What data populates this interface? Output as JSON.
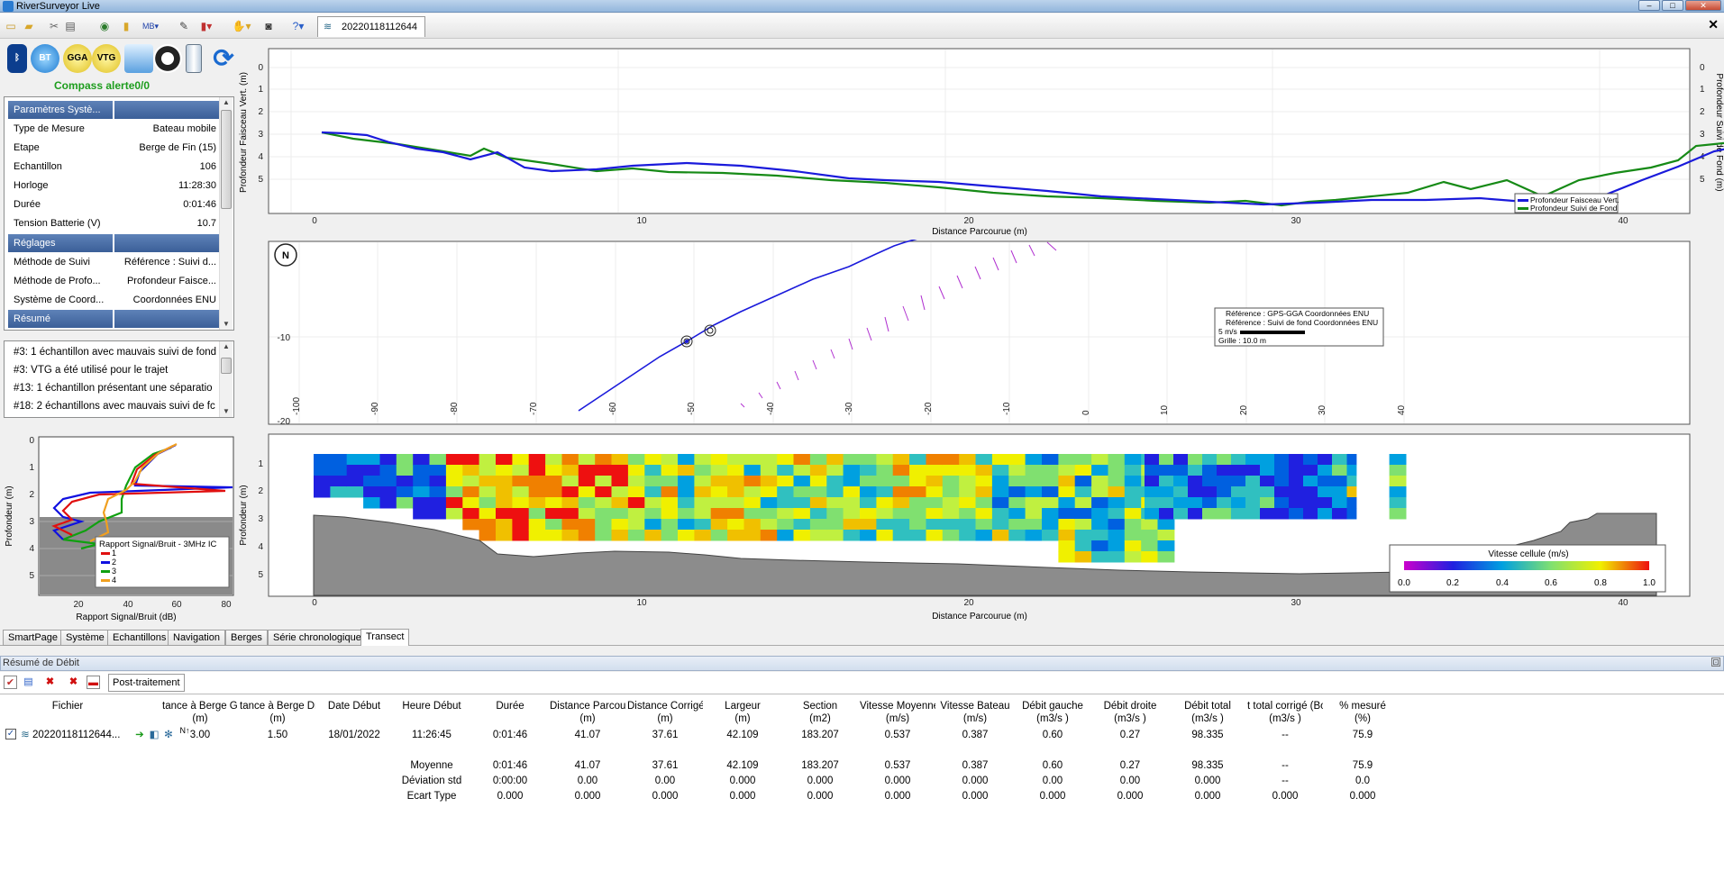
{
  "app": {
    "title": "RiverSurveyor Live",
    "close": "✕"
  },
  "doc_tab": "20220118112644",
  "left": {
    "devices": [
      "BT",
      "GGA",
      "VTG"
    ],
    "compass": "Compass alerte0/0",
    "sections": [
      {
        "title": "Paramètres Systè..."
      },
      {
        "title": "Réglages"
      },
      {
        "title": "Résumé"
      }
    ],
    "system": [
      {
        "k": "Type de Mesure",
        "v": "Bateau mobile"
      },
      {
        "k": "Etape",
        "v": "Berge de Fin (15)"
      },
      {
        "k": "Echantillon",
        "v": "106"
      },
      {
        "k": "Horloge",
        "v": "11:28:30"
      },
      {
        "k": "Durée",
        "v": "0:01:46"
      },
      {
        "k": "Tension Batterie (V)",
        "v": "10.7"
      }
    ],
    "settings": [
      {
        "k": "Méthode de Suivi",
        "v": "Référence : Suivi d..."
      },
      {
        "k": "Méthode de Profo...",
        "v": "Profondeur Faisce..."
      },
      {
        "k": "Système de Coord...",
        "v": "Coordonnées ENU"
      }
    ],
    "messages": [
      "#3: 1 échantillon avec mauvais suivi de fond",
      "#3: VTG a été utilisé pour le trajet",
      "#13: 1 échantillon présentant une séparatio",
      "#18: 2 échantillons avec mauvais suivi de fc"
    ]
  },
  "depth_chart": {
    "ylabel_left": "Profondeur Faisceau Vert. (m)",
    "ylabel_right": "Profondeur Suivi de Fond (m)",
    "xlabel": "Distance Parcourue (m)",
    "legend": [
      "Profondeur Faisceau Vert.",
      "Profondeur Suivi de Fond"
    ],
    "colors": {
      "vert": "#1a1adb",
      "bt": "#168a16"
    },
    "yticks": [
      "0",
      "1",
      "2",
      "3",
      "4",
      "5"
    ],
    "xticks": [
      "0",
      "10",
      "20",
      "30",
      "40"
    ]
  },
  "track_chart": {
    "compass": "N",
    "yticks": [
      "-10",
      "-20"
    ],
    "xticks": [
      "-100",
      "-90",
      "-80",
      "-70",
      "-60",
      "-50",
      "-40",
      "-30",
      "-20",
      "-10",
      "0",
      "10",
      "20",
      "30",
      "40"
    ],
    "legend": [
      "Référence : GPS-GGA Coordonnées ENU",
      "Référence : Suivi de fond Coordonnées ENU",
      "5 m/s",
      "Grille : 10.0 m"
    ]
  },
  "snr_chart": {
    "ylabel": "Profondeur (m)",
    "xlabel": "Rapport Signal/Bruit (dB)",
    "legend_title": "Rapport Signal/Bruit - 3MHz IC",
    "beams": [
      {
        "name": "1",
        "color": "#e01010"
      },
      {
        "name": "2",
        "color": "#1010e0"
      },
      {
        "name": "3",
        "color": "#10a010"
      },
      {
        "name": "4",
        "color": "#f0a020"
      }
    ],
    "yticks": [
      "0",
      "1",
      "2",
      "3",
      "4",
      "5"
    ],
    "xticks": [
      "20",
      "40",
      "60",
      "80"
    ]
  },
  "velocity_chart": {
    "ylabel": "Profondeur (m)",
    "xlabel": "Distance Parcourue (m)",
    "legend_title": "Vitesse cellule (m/s)",
    "scale": [
      "0.0",
      "0.2",
      "0.4",
      "0.6",
      "0.8",
      "1.0"
    ],
    "yticks": [
      "1",
      "2",
      "3",
      "4",
      "5"
    ],
    "xticks": [
      "0",
      "10",
      "20",
      "30",
      "40"
    ]
  },
  "tabs": [
    "SmartPage",
    "Système",
    "Echantillons",
    "Navigation",
    "Berges",
    "Série chronologique",
    "Transect"
  ],
  "summary": {
    "title": "Résumé de Débit",
    "post_tab": "Post-traitement",
    "columns": [
      [
        "Fichier",
        ""
      ],
      [
        "tance à Berge Gau",
        "(m)"
      ],
      [
        "tance à Berge Dro",
        "(m)"
      ],
      [
        "Date Début",
        ""
      ],
      [
        "Heure Début",
        ""
      ],
      [
        "Durée",
        ""
      ],
      [
        "Distance Parcouru",
        "(m)"
      ],
      [
        "Distance Corrigée",
        "(m)"
      ],
      [
        "Largeur",
        "(m)"
      ],
      [
        "Section",
        "(m2)"
      ],
      [
        "Vitesse Moyenne",
        "(m/s)"
      ],
      [
        "Vitesse Bateau",
        "(m/s)"
      ],
      [
        "Débit gauche",
        "(m3/s )"
      ],
      [
        "Débit droite",
        "(m3/s )"
      ],
      [
        "Débit total",
        "(m3/s )"
      ],
      [
        "t total corrigé (Bo",
        "(m3/s )"
      ],
      [
        "% mesuré",
        "(%)"
      ]
    ],
    "row": [
      "20220118112644...",
      "3.00",
      "1.50",
      "18/01/2022",
      "11:26:45",
      "0:01:46",
      "41.07",
      "37.61",
      "42.109",
      "183.207",
      "0.537",
      "0.387",
      "0.60",
      "0.27",
      "98.335",
      "--",
      "75.9"
    ],
    "stats": [
      {
        "label": "Moyenne",
        "values": [
          "0:01:46",
          "41.07",
          "37.61",
          "42.109",
          "183.207",
          "0.537",
          "0.387",
          "0.60",
          "0.27",
          "98.335",
          "--",
          "75.9"
        ]
      },
      {
        "label": "Déviation std",
        "values": [
          "0:00:00",
          "0.00",
          "0.00",
          "0.000",
          "0.000",
          "0.000",
          "0.000",
          "0.00",
          "0.00",
          "0.000",
          "--",
          "0.0"
        ]
      },
      {
        "label": "Ecart Type",
        "values": [
          "0.000",
          "0.000",
          "0.000",
          "0.000",
          "0.000",
          "0.000",
          "0.000",
          "0.000",
          "0.000",
          "0.000",
          "0.000",
          "0.000"
        ]
      }
    ]
  }
}
